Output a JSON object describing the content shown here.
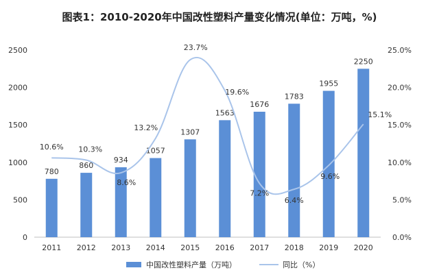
{
  "chart_data": {
    "type": "bar",
    "title": "图表1：2010-2020年中国改性塑料产量变化情况(单位：万吨，%)",
    "categories": [
      "2011",
      "2012",
      "2013",
      "2014",
      "2015",
      "2016",
      "2017",
      "2018",
      "2019",
      "2020"
    ],
    "series": [
      {
        "name": "中国改性塑料产量（万吨）",
        "type": "bar",
        "axis": "left",
        "values": [
          780,
          860,
          934,
          1057,
          1307,
          1563,
          1676,
          1783,
          1955,
          2250
        ],
        "labels": [
          "780",
          "860",
          "934",
          "1057",
          "1307",
          "1563",
          "1676",
          "1783",
          "1955",
          "2250"
        ]
      },
      {
        "name": "同比（%）",
        "type": "line",
        "axis": "right",
        "values": [
          10.6,
          10.3,
          8.6,
          13.2,
          23.7,
          19.6,
          7.2,
          6.4,
          9.6,
          15.1
        ],
        "labels": [
          "10.6%",
          "10.3%",
          "8.6%",
          "13.2%",
          "23.7%",
          "19.6%",
          "7.2%",
          "6.4%",
          "9.6%",
          "15.1%"
        ]
      }
    ],
    "y_left": {
      "ylim": [
        0,
        2500
      ],
      "ticks": [
        0,
        500,
        1000,
        1500,
        2000,
        2500
      ],
      "tick_labels": [
        "0",
        "500",
        "1000",
        "1500",
        "2000",
        "2500"
      ]
    },
    "y_right": {
      "ylim": [
        0,
        25
      ],
      "ticks": [
        0,
        5,
        10,
        15,
        20,
        25
      ],
      "tick_labels": [
        "0.0%",
        "5.0%",
        "10.0%",
        "15.0%",
        "20.0%",
        "25.0%"
      ]
    },
    "grid": false,
    "legend": "bottom-center",
    "colors": {
      "bar": "#5b8fd6",
      "line": "#a9c4ea",
      "text": "#333333"
    }
  }
}
